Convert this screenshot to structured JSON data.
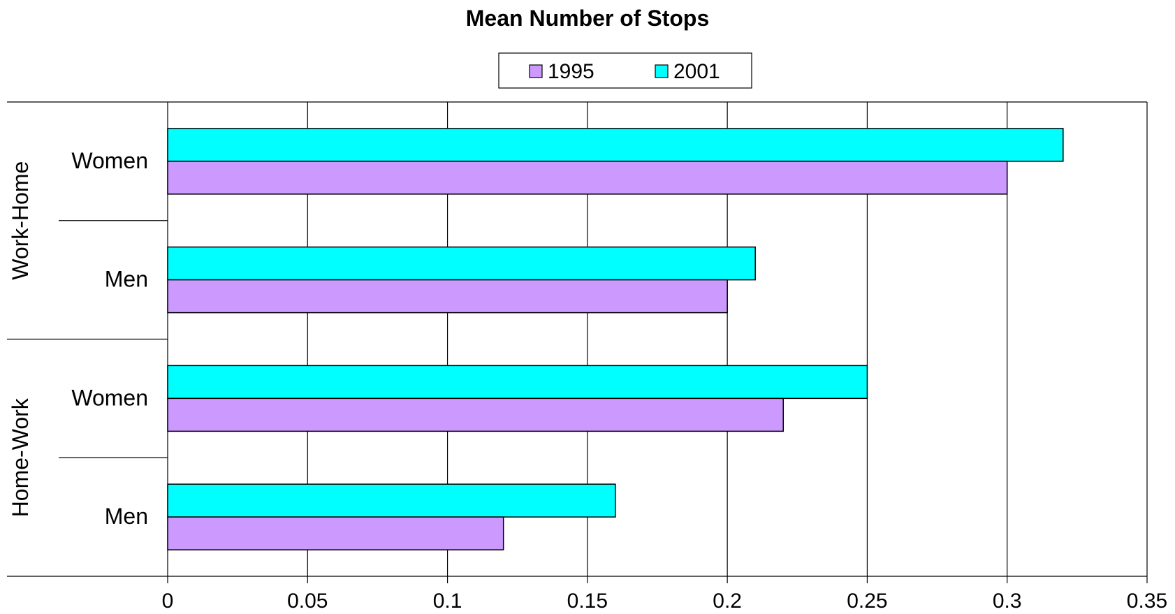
{
  "chart_data": {
    "type": "bar",
    "orientation": "horizontal",
    "title": "Mean Number of Stops",
    "groups": [
      {
        "label": "Work-Home",
        "categories": [
          "Women",
          "Men"
        ]
      },
      {
        "label": "Home-Work",
        "categories": [
          "Women",
          "Men"
        ]
      }
    ],
    "series": [
      {
        "name": "1995",
        "color": "#cc99ff",
        "values": [
          0.3,
          0.2,
          0.22,
          0.12
        ]
      },
      {
        "name": "2001",
        "color": "#00ffff",
        "values": [
          0.32,
          0.21,
          0.25,
          0.16
        ]
      }
    ],
    "xlim": [
      0,
      0.35
    ],
    "xticks": [
      "0",
      "0.05",
      "0.1",
      "0.15",
      "0.2",
      "0.25",
      "0.3",
      "0.35"
    ],
    "xtick_values": [
      0,
      0.05,
      0.1,
      0.15,
      0.2,
      0.25,
      0.3,
      0.35
    ],
    "grid": true,
    "legend": "top-center"
  }
}
